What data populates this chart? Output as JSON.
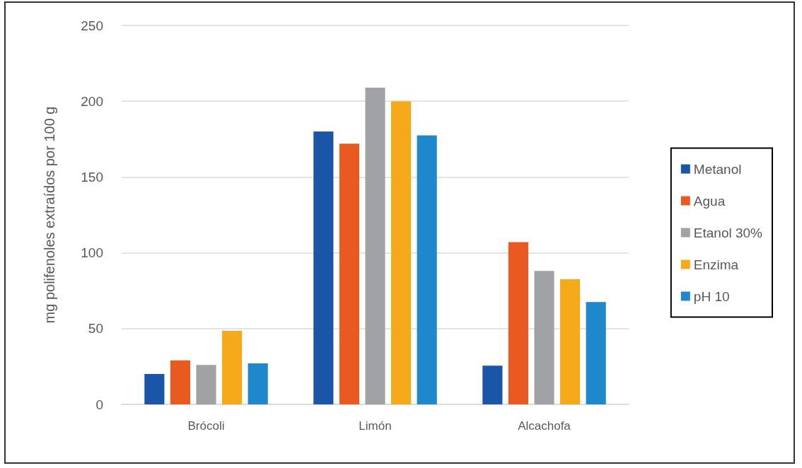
{
  "chart_data": {
    "type": "bar",
    "ylabel": "mg polifenoles extraídos por 100 g",
    "categories": [
      "Brócoli",
      "Limón",
      "Alcachofa"
    ],
    "series": [
      {
        "name": "Metanol",
        "color": "#1a55a8",
        "values": [
          20,
          180,
          25.5
        ]
      },
      {
        "name": "Agua",
        "color": "#e95a20",
        "values": [
          29,
          172,
          107
        ]
      },
      {
        "name": "Etanol 30%",
        "color": "#a0a2a6",
        "values": [
          26,
          209,
          88
        ]
      },
      {
        "name": "Enzima",
        "color": "#f5aa1c",
        "values": [
          48.5,
          200,
          82.5
        ]
      },
      {
        "name": "pH 10",
        "color": "#1f88cc",
        "values": [
          27,
          177.5,
          67.5
        ]
      }
    ],
    "ylim": [
      0,
      250
    ],
    "yticks": [
      0,
      50,
      100,
      150,
      200,
      250
    ],
    "grid": "y",
    "legend": "right"
  }
}
